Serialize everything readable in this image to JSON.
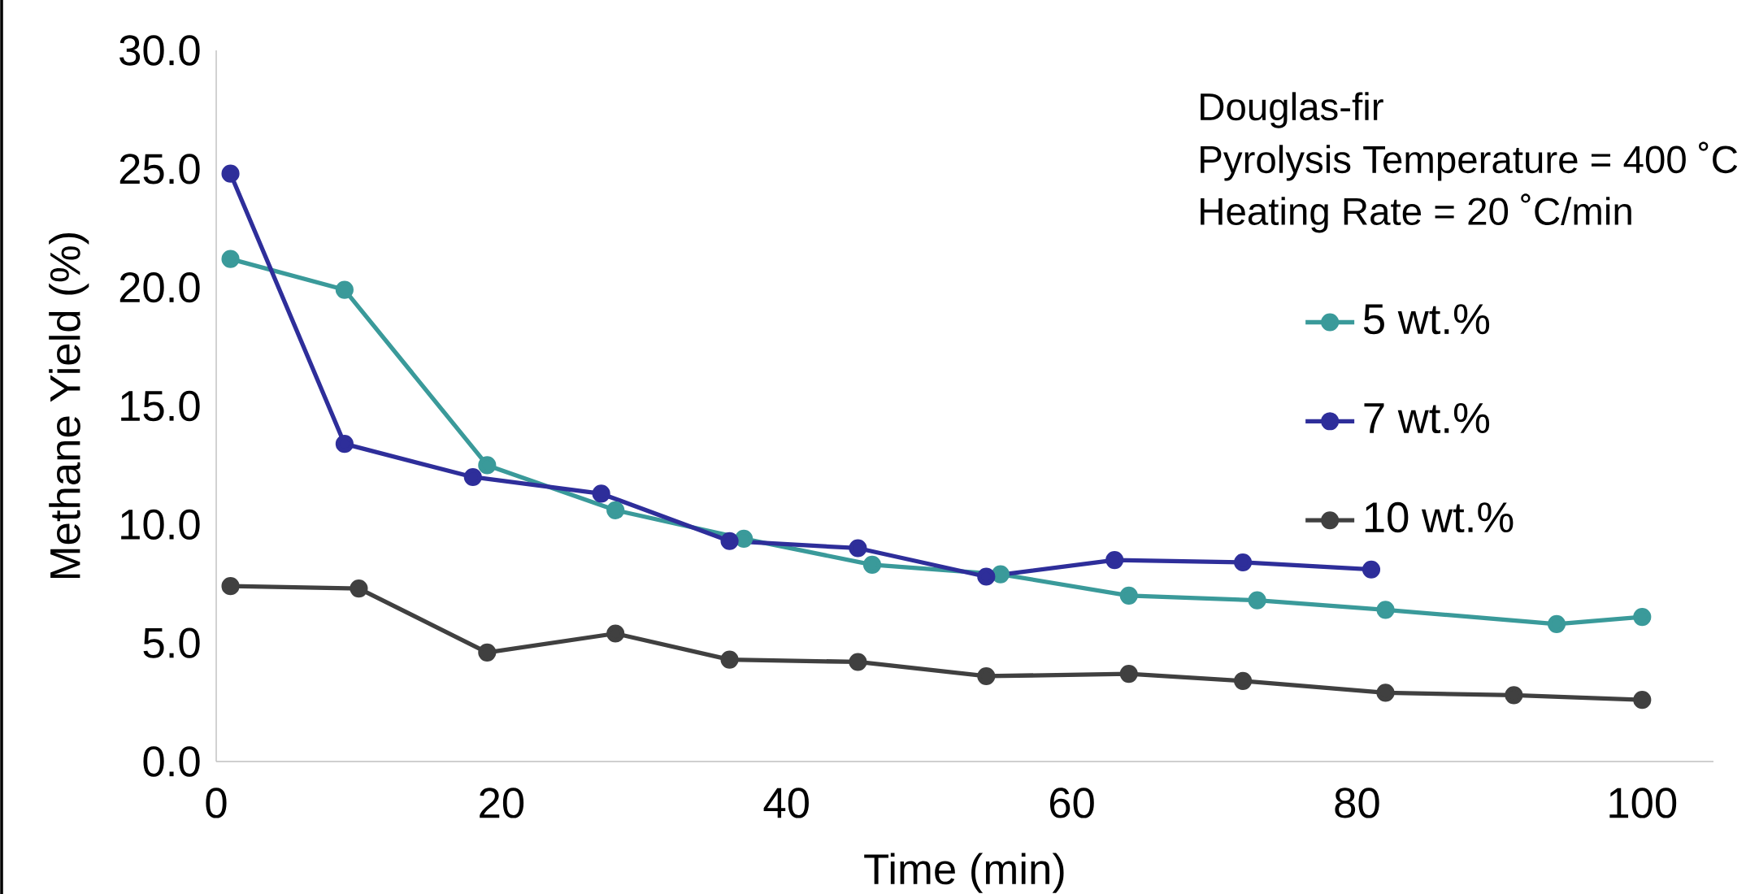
{
  "chart_data": {
    "type": "line",
    "xlabel": "Time (min)",
    "ylabel": "Methane Yield (%)",
    "annotations": [
      "Douglas-fir",
      "Pyrolysis Temperature = 400 ˚C",
      "Heating Rate = 20 ˚C/min"
    ],
    "xlim": [
      0,
      105
    ],
    "xticks": [
      0,
      20,
      40,
      60,
      80,
      100
    ],
    "ylim": [
      0,
      30
    ],
    "yticks": [
      {
        "value": 0,
        "label": "0.0"
      },
      {
        "value": 5,
        "label": "5.0"
      },
      {
        "value": 10,
        "label": "10.0"
      },
      {
        "value": 15,
        "label": "15.0"
      },
      {
        "value": 20,
        "label": "20.0"
      },
      {
        "value": 25,
        "label": "25.0"
      },
      {
        "value": 30,
        "label": "30.0"
      }
    ],
    "grid": false,
    "legend": "right",
    "marker": "circle",
    "line_style": "solid",
    "series": [
      {
        "name": "5 wt.%",
        "color": "#3a9a9a",
        "x": [
          1,
          9,
          19,
          28,
          37,
          46,
          55,
          64,
          73,
          82,
          94,
          100
        ],
        "values": [
          21.2,
          19.9,
          12.5,
          10.6,
          9.4,
          8.3,
          7.9,
          7.0,
          6.8,
          6.4,
          5.8,
          6.1
        ]
      },
      {
        "name": "7 wt.%",
        "color": "#2e2e9a",
        "x": [
          1,
          9,
          18,
          27,
          36,
          45,
          54,
          63,
          72,
          81
        ],
        "values": [
          24.8,
          13.4,
          12.0,
          11.3,
          9.3,
          9.0,
          7.8,
          8.5,
          8.4,
          8.1
        ]
      },
      {
        "name": "10 wt.%",
        "color": "#404040",
        "x": [
          1,
          10,
          19,
          28,
          36,
          45,
          54,
          64,
          72,
          82,
          91,
          100
        ],
        "values": [
          7.4,
          7.3,
          4.6,
          5.4,
          4.3,
          4.2,
          3.6,
          3.7,
          3.4,
          2.9,
          2.8,
          2.6
        ]
      }
    ]
  }
}
